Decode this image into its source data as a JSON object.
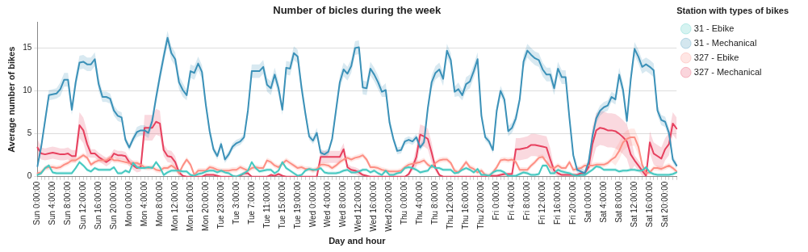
{
  "chart_data": {
    "type": "line",
    "title": "Number of bicles during the week",
    "xlabel": "Day and hour",
    "ylabel": "Average number of bikes",
    "legend_title": "Station with types of bikes",
    "legend": "top right",
    "grid": "y",
    "ylim": [
      0,
      18
    ],
    "yticks": [
      0,
      5,
      10,
      15
    ],
    "categories": [
      "Sun 0:00:00",
      null,
      null,
      null,
      "Sun 4:00:00",
      null,
      null,
      null,
      "Sun 8:00:00",
      null,
      null,
      null,
      "Sun 12:00:00",
      null,
      null,
      null,
      "Sun 16:00:00",
      null,
      null,
      null,
      "Sun 20:00:00",
      null,
      null,
      null,
      "Mon 0:00:00",
      null,
      null,
      null,
      "Mon 4:00:00",
      null,
      null,
      null,
      "Mon 8:00:00",
      null,
      null,
      null,
      "Mon 12:00:00",
      null,
      null,
      null,
      "Mon 16:00:00",
      null,
      null,
      null,
      "Mon 20:00:00",
      null,
      null,
      null,
      "Tue 23:00:00",
      null,
      null,
      null,
      "Tue 3:00:00",
      null,
      null,
      null,
      "Tue 7:00:00",
      null,
      null,
      null,
      "Tue 11:00:00",
      null,
      null,
      null,
      "Tue 15:00:00",
      null,
      null,
      null,
      "Tue 19:00:00",
      null,
      null,
      null,
      "Wed 0:00:00",
      null,
      null,
      null,
      "Wed 4:00:00",
      null,
      null,
      null,
      "Wed 8:00:00",
      null,
      null,
      null,
      "Wed 12:00:00",
      null,
      null,
      null,
      "Wed 16:00:00",
      null,
      null,
      null,
      "Wed 20:00:00",
      null,
      null,
      null,
      "Thu 0:00:00",
      null,
      null,
      null,
      "Thu 4:00:00",
      null,
      null,
      null,
      "Thu 8:00:00",
      null,
      null,
      null,
      "Thu 12:00:00",
      null,
      null,
      null,
      "Thu 16:00:00",
      null,
      null,
      null,
      "Thu 20:00:00",
      null,
      null,
      null,
      "Fri 0:00:00",
      null,
      null,
      null,
      "Fri 4:00:00",
      null,
      null,
      null,
      "Fri 8:00:00",
      null,
      null,
      null,
      "Fri 12:00:00",
      null,
      null,
      null,
      "Fri 16:00:00",
      null,
      null,
      null,
      "Fri 20:00:00",
      null,
      null,
      null,
      "Sat 0:00:00",
      null,
      null,
      null,
      "Sat 4:00:00",
      null,
      null,
      null,
      "Sat 8:00:00",
      null,
      null,
      null,
      "Sat 12:00:00",
      null,
      null,
      null,
      "Sat 16:00:00",
      null,
      null,
      null,
      "Sat 20:00:00",
      null,
      null,
      null
    ],
    "series": [
      {
        "name": "31 - Ebike",
        "color": "#45c9c1",
        "values": [
          0.2,
          0.4,
          1.0,
          1.3,
          0.5,
          0.4,
          0.4,
          0.4,
          0.4,
          0.4,
          1.0,
          1.7,
          1.3,
          0.8,
          0.6,
          1.0,
          0.8,
          0.8,
          0.8,
          0.8,
          1.1,
          0.4,
          0.4,
          0.7,
          0.5,
          1.6,
          1.1,
          1.0,
          1.0,
          1.1,
          1.0,
          1.7,
          1.1,
          0.2,
          0.5,
          0.7,
          0.7,
          0.7,
          0.6,
          0.6,
          0.2,
          0.1,
          0.3,
          0.4,
          0.6,
          0.7,
          0.7,
          0.5,
          0.7,
          0.5,
          0.4,
          0.1,
          0,
          0.2,
          0.4,
          0.7,
          1.7,
          1.0,
          0.6,
          0.7,
          0.8,
          0.8,
          0.4,
          0.7,
          1.7,
          1.0,
          0.7,
          0.4,
          0.1,
          0.2,
          0.7,
          0.9,
          0.8,
          0.8,
          1.0,
          0.5,
          0.4,
          0.4,
          0.4,
          0.5,
          0.7,
          0.8,
          0.5,
          0.5,
          0.6,
          0.8,
          0.8,
          0.5,
          0.7,
          0.4,
          0.2,
          0.7,
          0.2,
          0.2,
          0.4,
          0.5,
          1.0,
          1.1,
          1.0,
          0.8,
          0.5,
          0.6,
          0.7,
          1.3,
          1.0,
          1.0,
          0.8,
          0.8,
          0.8,
          0.4,
          0.5,
          0.8,
          1.0,
          0.8,
          0.5,
          0.9,
          0.2,
          0.2,
          0.1,
          0.5,
          0.7,
          0.7,
          0.5,
          0.1,
          0.1,
          0.1,
          0.3,
          0.5,
          0.4,
          0.2,
          0.2,
          0.3,
          1.3,
          1.3,
          0.4,
          0.4,
          0.8,
          0.6,
          0.5,
          0.4,
          0.2,
          0.1,
          0.2,
          0.2,
          0.5,
          0.8,
          1.2,
          1.1,
          0.8,
          0.8,
          0.8,
          0.8,
          0.6,
          0.7,
          0.7,
          0.8,
          0.8,
          0.7,
          0.7,
          1.1,
          0.5,
          0.3,
          0.2,
          0.2,
          0.2,
          0.2,
          0.3,
          0.5
        ],
        "lower": [
          0,
          0.2,
          0.8,
          1.1,
          0.3,
          0.2,
          0.2,
          0.2,
          0.2,
          0.2,
          0.8,
          1.5,
          1.1,
          0.6,
          0.4,
          0.8,
          0.6,
          0.6,
          0.6,
          0.6,
          0.9,
          0.2,
          0.2,
          0.5,
          0.3,
          1.4,
          0.9,
          0.8,
          0.8,
          0.9,
          0.8,
          1.5,
          0.9,
          0,
          0.3,
          0.5,
          0.5,
          0.5,
          0.4,
          0.4,
          0,
          0,
          0.1,
          0.2,
          0.4,
          0.5,
          0.5,
          0.3,
          0.5,
          0.3,
          0.2,
          0,
          0,
          0,
          0.2,
          0.5,
          1.5,
          0.8,
          0.4,
          0.5,
          0.6,
          0.6,
          0.2,
          0.5,
          1.5,
          0.8,
          0.5,
          0.2,
          0,
          0,
          0.5,
          0.7,
          0.6,
          0.6,
          0.8,
          0.3,
          0.2,
          0.2,
          0.2,
          0.3,
          0.5,
          0.6,
          0.3,
          0.3,
          0.4,
          0.6,
          0.6,
          0.3,
          0.5,
          0.2,
          0,
          0.5,
          0,
          0,
          0.2,
          0.3,
          0.8,
          0.9,
          0.8,
          0.6,
          0.3,
          0.4,
          0.5,
          1.1,
          0.8,
          0.8,
          0.6,
          0.6,
          0.6,
          0.2,
          0.3,
          0.6,
          0.8,
          0.6,
          0.3,
          0.7,
          0,
          0,
          0,
          0.3,
          0.5,
          0.5,
          0.3,
          0,
          0,
          0,
          0.1,
          0.3,
          0.2,
          0,
          0,
          0.1,
          1.1,
          1.1,
          0.2,
          0.2,
          0.6,
          0.4,
          0.3,
          0.2,
          0,
          0,
          0,
          0,
          0.3,
          0.6,
          1.0,
          0.9,
          0.6,
          0.6,
          0.6,
          0.6,
          0.4,
          0.5,
          0.5,
          0.6,
          0.6,
          0.5,
          0.5,
          0.9,
          0.3,
          0.1,
          0,
          0,
          0,
          0,
          0.1,
          0.3
        ],
        "upper": [
          0.4,
          0.6,
          1.2,
          1.5,
          0.7,
          0.6,
          0.6,
          0.6,
          0.6,
          0.6,
          1.2,
          1.9,
          1.5,
          1.0,
          0.8,
          1.2,
          1.0,
          1.0,
          1.0,
          1.0,
          1.3,
          0.6,
          0.6,
          0.9,
          0.7,
          1.8,
          1.3,
          1.2,
          1.2,
          1.3,
          1.2,
          1.9,
          1.3,
          0.4,
          0.7,
          0.9,
          0.9,
          0.9,
          0.8,
          0.8,
          0.4,
          0.3,
          0.5,
          0.6,
          0.8,
          0.9,
          0.9,
          0.7,
          0.9,
          0.7,
          0.6,
          0.3,
          0.2,
          0.4,
          0.6,
          0.9,
          1.9,
          1.2,
          0.8,
          0.9,
          1.0,
          1.0,
          0.6,
          0.9,
          1.9,
          1.2,
          0.9,
          0.6,
          0.3,
          0.4,
          0.9,
          1.1,
          1.0,
          1.0,
          1.2,
          0.7,
          0.6,
          0.6,
          0.6,
          0.7,
          0.9,
          1.0,
          0.7,
          0.7,
          0.8,
          1.0,
          1.0,
          0.7,
          0.9,
          0.6,
          0.4,
          0.9,
          0.4,
          0.4,
          0.6,
          0.7,
          1.2,
          1.3,
          1.2,
          1.0,
          0.7,
          0.8,
          0.9,
          1.5,
          1.2,
          1.2,
          1.0,
          1.0,
          1.0,
          0.6,
          0.7,
          1.0,
          1.2,
          1.0,
          0.7,
          1.1,
          0.4,
          0.4,
          0.3,
          0.7,
          0.9,
          0.9,
          0.7,
          0.3,
          0.3,
          0.3,
          0.5,
          0.7,
          0.6,
          0.4,
          0.4,
          0.5,
          1.5,
          1.5,
          0.6,
          0.6,
          1.0,
          0.8,
          0.7,
          0.6,
          0.4,
          0.3,
          0.4,
          0.4,
          0.7,
          1.0,
          1.4,
          1.3,
          1.0,
          1.0,
          1.0,
          1.0,
          0.8,
          0.9,
          0.9,
          1.0,
          1.0,
          0.9,
          0.9,
          1.3,
          0.7,
          0.5,
          0.4,
          0.4,
          0.4,
          0.4,
          0.5,
          0.7
        ]
      },
      {
        "name": "31 - Mechanical",
        "color": "#3b91b8",
        "values": [
          1.2,
          3.5,
          6.5,
          9.5,
          9.6,
          9.7,
          10.2,
          11.3,
          11.3,
          7.8,
          11.0,
          13.3,
          13.4,
          13.1,
          13.1,
          13.7,
          10.8,
          9.3,
          9.3,
          9.1,
          7.7,
          7.1,
          6.9,
          4.3,
          3.4,
          4.4,
          5.2,
          5.4,
          5.4,
          5.1,
          6.5,
          9.2,
          11.7,
          14.0,
          16.2,
          14.4,
          13.7,
          11.0,
          10.1,
          9.5,
          12.3,
          12.1,
          13.2,
          12.2,
          8.4,
          5.3,
          3.2,
          2.4,
          3.8,
          2.0,
          2.6,
          3.5,
          3.9,
          4.1,
          4.6,
          7.7,
          12.3,
          12.3,
          12.3,
          12.8,
          10.7,
          10.3,
          11.9,
          10.3,
          7.8,
          12.7,
          12.6,
          14.4,
          14.0,
          10.4,
          7.4,
          4.7,
          4.2,
          5.1,
          2.8,
          2.6,
          2.9,
          4.4,
          7.7,
          11.0,
          12.5,
          12.0,
          12.9,
          15.0,
          15.1,
          10.4,
          10.3,
          12.6,
          11.9,
          11.0,
          9.9,
          10.1,
          6.3,
          4.4,
          3.0,
          3.1,
          4.1,
          4.3,
          4.1,
          4.6,
          3.4,
          4.0,
          8.0,
          11.0,
          12.1,
          12.5,
          11.4,
          14.7,
          13.6,
          9.9,
          10.2,
          9.5,
          10.8,
          11.1,
          12.3,
          13.7,
          7.1,
          4.6,
          4.1,
          3.1,
          7.7,
          10.0,
          9.0,
          5.3,
          5.7,
          6.8,
          9.0,
          13.4,
          14.7,
          14.2,
          13.8,
          13.6,
          12.5,
          11.9,
          11.9,
          10.3,
          12.6,
          11.6,
          11.6,
          6.8,
          2.5,
          0.8,
          0.6,
          0.4,
          1.7,
          4.7,
          6.8,
          7.7,
          8.1,
          8.3,
          9.3,
          9.0,
          11.9,
          10.1,
          6.5,
          11.3,
          14.9,
          14.0,
          12.8,
          13.1,
          12.8,
          12.4,
          7.7,
          6.6,
          6.4,
          5.1,
          2.0,
          1.3
        ],
        "lower": [
          0.8,
          3.1,
          5.9,
          8.9,
          9.0,
          9.1,
          9.4,
          10.5,
          10.5,
          7.2,
          10.2,
          12.5,
          12.6,
          12.3,
          12.3,
          12.9,
          10.0,
          8.7,
          8.7,
          8.5,
          7.1,
          6.5,
          6.3,
          3.9,
          3.0,
          4.0,
          4.6,
          4.8,
          4.8,
          4.5,
          5.9,
          8.6,
          10.9,
          13.2,
          15.4,
          13.6,
          12.9,
          10.2,
          9.3,
          8.9,
          11.5,
          11.3,
          12.4,
          11.4,
          7.8,
          4.7,
          2.8,
          2.0,
          3.4,
          1.6,
          2.2,
          3.1,
          3.5,
          3.7,
          4.2,
          7.1,
          11.5,
          11.5,
          11.5,
          12.0,
          9.9,
          9.5,
          11.1,
          9.5,
          7.2,
          11.9,
          11.8,
          13.6,
          13.2,
          9.6,
          6.8,
          4.3,
          3.8,
          4.5,
          2.4,
          2.2,
          2.5,
          4.0,
          7.1,
          10.2,
          11.7,
          11.2,
          12.1,
          14.2,
          14.3,
          9.6,
          9.5,
          11.8,
          11.1,
          10.2,
          9.3,
          9.3,
          5.7,
          4.0,
          2.6,
          2.7,
          3.7,
          3.9,
          3.7,
          4.2,
          3.0,
          3.6,
          7.4,
          10.2,
          11.3,
          11.7,
          10.6,
          13.9,
          12.8,
          9.3,
          9.4,
          8.9,
          10.0,
          10.3,
          11.5,
          12.9,
          6.5,
          4.2,
          3.7,
          2.7,
          7.1,
          9.4,
          8.4,
          4.7,
          5.1,
          6.2,
          8.4,
          12.6,
          13.9,
          13.4,
          13.0,
          12.8,
          11.7,
          11.1,
          11.1,
          9.5,
          11.8,
          10.8,
          10.8,
          6.2,
          2.1,
          0.4,
          0.2,
          0,
          1.3,
          4.3,
          6.2,
          7.1,
          7.5,
          7.7,
          8.7,
          8.4,
          11.1,
          9.3,
          5.9,
          10.5,
          14.1,
          13.2,
          12.0,
          12.3,
          12.0,
          11.6,
          7.1,
          6.0,
          5.8,
          4.5,
          1.6,
          0.9
        ],
        "upper": [
          1.6,
          3.9,
          7.1,
          10.1,
          10.2,
          10.3,
          11.0,
          12.1,
          12.1,
          8.4,
          11.8,
          14.1,
          14.2,
          13.9,
          13.9,
          14.5,
          11.6,
          9.9,
          9.9,
          9.7,
          8.3,
          7.7,
          7.5,
          4.7,
          3.8,
          4.8,
          5.8,
          6.0,
          6.0,
          5.7,
          7.1,
          9.8,
          12.5,
          14.8,
          17.0,
          15.2,
          14.5,
          11.8,
          10.9,
          10.1,
          13.1,
          12.9,
          14.0,
          13.0,
          9.0,
          5.9,
          3.6,
          2.8,
          4.2,
          2.4,
          3.0,
          3.9,
          4.3,
          4.5,
          5.0,
          8.3,
          13.1,
          13.1,
          13.1,
          13.6,
          11.5,
          11.1,
          12.7,
          11.1,
          8.4,
          13.5,
          13.4,
          15.2,
          14.8,
          11.2,
          8.0,
          5.1,
          4.6,
          5.7,
          3.2,
          3.0,
          3.3,
          4.8,
          8.3,
          11.8,
          13.3,
          12.8,
          13.7,
          15.8,
          15.9,
          11.2,
          11.1,
          13.4,
          12.7,
          11.8,
          10.5,
          10.9,
          6.9,
          4.8,
          3.4,
          3.5,
          4.5,
          4.7,
          4.5,
          5.0,
          3.8,
          4.4,
          8.6,
          11.8,
          12.9,
          13.3,
          12.2,
          15.5,
          14.4,
          10.5,
          11.0,
          10.1,
          11.6,
          11.9,
          13.1,
          14.5,
          7.7,
          5.0,
          4.5,
          3.5,
          8.3,
          10.6,
          9.6,
          5.9,
          6.3,
          7.4,
          9.6,
          14.2,
          15.5,
          15.0,
          14.6,
          14.4,
          13.3,
          12.7,
          12.7,
          11.1,
          13.4,
          12.4,
          12.4,
          7.4,
          2.9,
          1.2,
          1.0,
          0.8,
          2.1,
          5.1,
          7.4,
          8.3,
          8.7,
          8.9,
          9.9,
          9.6,
          12.7,
          10.9,
          7.1,
          12.1,
          15.7,
          14.8,
          13.6,
          13.9,
          13.6,
          13.2,
          8.3,
          7.2,
          7.0,
          5.7,
          2.4,
          1.7
        ]
      },
      {
        "name": "327 - Ebike",
        "color": "#fd8f84",
        "values": [
          0.4,
          0.5,
          1.0,
          1.1,
          1.1,
          1.0,
          1.1,
          1.4,
          1.6,
          1.9,
          1.9,
          2.2,
          2.5,
          2.2,
          1.4,
          1.7,
          1.9,
          1.9,
          1.9,
          2.2,
          1.9,
          1.9,
          1.8,
          1.7,
          1.6,
          1.6,
          1.6,
          1.4,
          1.1,
          1.0,
          1.1,
          0.8,
          0.7,
          1.0,
          1.0,
          1.3,
          1.0,
          0.4,
          1.3,
          2.0,
          1.4,
          0.2,
          0.7,
          0.7,
          0.7,
          1.1,
          1.0,
          0.8,
          0.7,
          0.7,
          0.7,
          0.8,
          0.8,
          1.1,
          0.9,
          0.7,
          1.0,
          1.1,
          1.0,
          1.0,
          1.9,
          1.7,
          1.3,
          1.1,
          1.5,
          1.9,
          1.6,
          1.3,
          1.0,
          1.1,
          0.9,
          0.9,
          0.7,
          0.9,
          1.4,
          1.4,
          1.3,
          1.0,
          1.3,
          1.7,
          2.0,
          2.2,
          2.0,
          2.2,
          2.3,
          2.5,
          2.0,
          1.1,
          1.1,
          1.0,
          0.8,
          0.7,
          0.6,
          0.6,
          0.6,
          0.7,
          1.1,
          1.4,
          1.5,
          1.6,
          1.7,
          1.9,
          1.4,
          1.1,
          1.6,
          1.9,
          2.0,
          2.0,
          1.6,
          0.7,
          0.5,
          1.1,
          1.7,
          1.1,
          0.9,
          0.5,
          0.7,
          0.2,
          0.1,
          0.5,
          1.1,
          1.9,
          2.0,
          1.9,
          2.0,
          1.7,
          0.8,
          0.8,
          0.8,
          1.3,
          1.7,
          2.2,
          2.3,
          1.7,
          1.1,
          1.0,
          1.3,
          1.0,
          1.0,
          1.7,
          0.8,
          0.9,
          1.0,
          1.3,
          1.3,
          1.3,
          1.4,
          1.4,
          1.4,
          1.6,
          2.0,
          2.3,
          3.0,
          4.0,
          4.4,
          4.6,
          4.6,
          3.5,
          1.4,
          0.4,
          0.5,
          1.0,
          1.0,
          0.9,
          1.1,
          1.3,
          1.0,
          0.6
        ],
        "lower": [
          0.1,
          0.2,
          0.7,
          0.8,
          0.8,
          0.7,
          0.8,
          1.1,
          1.3,
          1.6,
          1.6,
          1.9,
          2.2,
          1.9,
          1.1,
          1.4,
          1.6,
          1.6,
          1.6,
          1.9,
          1.6,
          1.6,
          1.5,
          1.4,
          1.3,
          1.3,
          1.3,
          1.1,
          0.8,
          0.7,
          0.8,
          0.5,
          0.4,
          0.7,
          0.7,
          1.0,
          0.7,
          0.1,
          1.0,
          1.7,
          1.1,
          0,
          0.4,
          0.4,
          0.4,
          0.8,
          0.7,
          0.5,
          0.4,
          0.4,
          0.4,
          0.5,
          0.5,
          0.8,
          0.6,
          0.4,
          0.7,
          0.8,
          0.7,
          0.7,
          1.6,
          1.4,
          1.0,
          0.8,
          1.2,
          1.6,
          1.3,
          1.0,
          0.7,
          0.8,
          0.6,
          0.6,
          0.4,
          0.6,
          1.1,
          1.1,
          1.0,
          0.7,
          1.0,
          1.4,
          1.7,
          1.9,
          1.7,
          1.9,
          2.0,
          2.2,
          1.7,
          0.8,
          0.8,
          0.7,
          0.5,
          0.4,
          0.3,
          0.3,
          0.3,
          0.4,
          0.8,
          1.1,
          1.2,
          1.3,
          1.4,
          1.6,
          1.1,
          0.8,
          1.3,
          1.6,
          1.7,
          1.7,
          1.3,
          0.4,
          0.2,
          0.8,
          1.4,
          0.8,
          0.6,
          0.2,
          0.4,
          0,
          0,
          0.2,
          0.8,
          1.6,
          1.7,
          1.6,
          1.7,
          1.4,
          0.5,
          0.5,
          0.5,
          1.0,
          1.4,
          1.9,
          2.0,
          1.4,
          0.8,
          0.7,
          1.0,
          0.7,
          0.7,
          1.4,
          0.5,
          0.6,
          0.7,
          1.0,
          1.0,
          1.0,
          1.1,
          1.1,
          1.1,
          1.3,
          1.7,
          1.3,
          2.0,
          3.0,
          3.4,
          3.6,
          3.6,
          2.5,
          1.1,
          0.1,
          0.2,
          0.7,
          0.7,
          0.6,
          0.8,
          1.0,
          0.7,
          0.3
        ],
        "upper": [
          0.7,
          0.8,
          1.3,
          1.4,
          1.4,
          1.3,
          1.4,
          1.7,
          1.9,
          2.2,
          2.2,
          2.5,
          2.8,
          2.5,
          1.7,
          2.0,
          2.2,
          2.2,
          2.2,
          2.5,
          2.2,
          2.2,
          2.1,
          2.0,
          1.9,
          1.9,
          1.9,
          1.7,
          1.4,
          1.3,
          1.4,
          1.1,
          1.0,
          1.3,
          1.3,
          1.6,
          1.3,
          0.7,
          1.6,
          2.3,
          1.7,
          0.5,
          1.0,
          1.0,
          1.0,
          1.4,
          1.3,
          1.1,
          1.0,
          1.0,
          1.0,
          1.1,
          1.1,
          1.4,
          1.2,
          1.0,
          1.3,
          1.4,
          1.3,
          1.3,
          2.2,
          2.0,
          1.6,
          1.4,
          1.8,
          2.2,
          1.9,
          1.6,
          1.3,
          1.4,
          1.2,
          1.2,
          1.0,
          1.2,
          1.7,
          1.7,
          1.6,
          1.3,
          1.6,
          2.0,
          2.3,
          2.5,
          2.3,
          2.5,
          2.6,
          2.8,
          2.3,
          1.4,
          1.4,
          1.3,
          1.1,
          1.0,
          0.9,
          0.9,
          0.9,
          1.0,
          1.4,
          1.7,
          1.8,
          1.9,
          2.0,
          2.2,
          1.7,
          1.4,
          1.9,
          2.2,
          2.3,
          2.3,
          1.9,
          1.0,
          0.8,
          1.4,
          2.0,
          1.4,
          1.2,
          0.8,
          1.0,
          0.5,
          0.4,
          0.8,
          1.4,
          2.2,
          2.3,
          2.2,
          2.3,
          2.0,
          1.1,
          1.1,
          1.1,
          1.6,
          2.0,
          2.5,
          2.6,
          2.0,
          1.4,
          1.3,
          1.6,
          1.3,
          1.3,
          2.0,
          1.1,
          1.2,
          1.3,
          1.6,
          1.6,
          1.6,
          1.7,
          1.7,
          1.7,
          1.9,
          2.3,
          3.3,
          4.0,
          5.0,
          5.4,
          5.6,
          5.6,
          4.5,
          1.7,
          0.7,
          0.8,
          1.3,
          1.3,
          1.2,
          1.4,
          1.6,
          1.3,
          0.9
        ]
      },
      {
        "name": "327 - Mechanical",
        "color": "#e7405e",
        "values": [
          3.4,
          2.7,
          2.6,
          2.7,
          2.8,
          2.7,
          2.6,
          2.6,
          2.7,
          2.4,
          2.4,
          6.0,
          5.4,
          3.8,
          2.7,
          2.7,
          2.3,
          2.0,
          1.7,
          2.0,
          2.7,
          2.5,
          2.5,
          2.4,
          1.7,
          1.3,
          1.0,
          1.1,
          5.7,
          5.7,
          5.7,
          6.4,
          6.2,
          3.1,
          2.4,
          2.3,
          1.7,
          0.5,
          0.1,
          0,
          0,
          0,
          0,
          0,
          0.2,
          0.2,
          0.2,
          0.1,
          0,
          0,
          0,
          0,
          0,
          0.1,
          0.4,
          0.4,
          0,
          0,
          0,
          0,
          0,
          0.2,
          0.1,
          0.3,
          0.1,
          0,
          0,
          0,
          0,
          0,
          0,
          0,
          0,
          0,
          2.3,
          2.3,
          2.3,
          2.3,
          2.3,
          2.3,
          3.2,
          1.1,
          0.8,
          0.7,
          0.5,
          0.2,
          0.1,
          0,
          0,
          0,
          0,
          0,
          0,
          0,
          0,
          0,
          0,
          0.3,
          1.1,
          2.3,
          4.9,
          4.7,
          4.4,
          2.8,
          1.0,
          0.2,
          0,
          0,
          0,
          0,
          0,
          0,
          0,
          0,
          0,
          0,
          0,
          0,
          0.1,
          0.1,
          0.1,
          0.2,
          0.3,
          0.3,
          0.3,
          3.2,
          3.2,
          3.3,
          3.4,
          3.7,
          3.7,
          3.6,
          3.5,
          3.4,
          2.0,
          0.7,
          0.4,
          0.2,
          0.2,
          0.2,
          0.2,
          0.2,
          0.4,
          0.4,
          1.1,
          3.8,
          5.4,
          5.7,
          5.6,
          5.4,
          5.4,
          5.3,
          5.0,
          4.6,
          4.1,
          2.6,
          1.9,
          1.3,
          0.7,
          0.1,
          4.0,
          2.7,
          2.4,
          2.1,
          3.2,
          3.8,
          6.2,
          5.6
        ],
        "lower": [
          2.4,
          2.0,
          1.9,
          2.0,
          2.1,
          2.0,
          1.9,
          1.9,
          2.0,
          1.7,
          1.7,
          4.5,
          3.9,
          2.3,
          2.2,
          2.2,
          1.8,
          1.5,
          1.2,
          1.5,
          2.2,
          2.0,
          2.0,
          1.9,
          1.2,
          0.8,
          0.5,
          0.6,
          4.2,
          4.2,
          4.2,
          4.9,
          4.7,
          2.4,
          1.7,
          1.6,
          1.0,
          0.1,
          0,
          0,
          0,
          0,
          0,
          0,
          0,
          0,
          0,
          0,
          0,
          0,
          0,
          0,
          0,
          0,
          0,
          0,
          0,
          0,
          0,
          0,
          0,
          0,
          0,
          0,
          0,
          0,
          0,
          0,
          0,
          0,
          0,
          0,
          0,
          0,
          1.6,
          1.6,
          1.6,
          1.6,
          1.6,
          1.6,
          2.5,
          0.7,
          0.4,
          0.3,
          0.1,
          0,
          0,
          0,
          0,
          0,
          0,
          0,
          0,
          0,
          0,
          0,
          0,
          0,
          0.7,
          1.1,
          3.7,
          3.5,
          3.2,
          1.6,
          0.6,
          0,
          0,
          0,
          0,
          0,
          0,
          0,
          0,
          0,
          0,
          0,
          0,
          0,
          0,
          0,
          0,
          0,
          0,
          0,
          0,
          1.9,
          1.9,
          2.0,
          2.1,
          2.4,
          2.4,
          2.3,
          2.2,
          2.1,
          0.7,
          0.3,
          0,
          0,
          0,
          0,
          0,
          0,
          0,
          0,
          0.5,
          1.8,
          3.4,
          3.7,
          3.6,
          3.4,
          3.4,
          3.3,
          3.0,
          2.6,
          2.1,
          0.6,
          1.3,
          0.7,
          0.1,
          0,
          2.7,
          1.4,
          1.1,
          0.8,
          1.9,
          2.5,
          4.9,
          4.3
        ],
        "upper": [
          4.4,
          3.4,
          3.3,
          3.4,
          3.5,
          3.4,
          3.3,
          3.3,
          3.4,
          3.1,
          3.1,
          7.5,
          6.9,
          5.3,
          3.2,
          3.2,
          2.8,
          2.5,
          2.2,
          2.5,
          3.2,
          3.0,
          3.0,
          2.9,
          2.2,
          1.8,
          1.5,
          1.6,
          7.2,
          7.2,
          7.2,
          7.9,
          7.7,
          3.8,
          3.1,
          3.0,
          2.4,
          0.9,
          0.3,
          0,
          0,
          0,
          0,
          0,
          0.4,
          0.4,
          0.4,
          0.3,
          0,
          0,
          0,
          0,
          0,
          0.3,
          0.6,
          0.6,
          0,
          0,
          0,
          0,
          0,
          0.4,
          0.3,
          0.5,
          0.3,
          0,
          0,
          0,
          0,
          0,
          0,
          0,
          0,
          0,
          3.0,
          3.0,
          3.0,
          3.0,
          3.0,
          3.0,
          3.9,
          1.5,
          1.2,
          1.1,
          0.9,
          0.4,
          0.3,
          0,
          0,
          0,
          0,
          0,
          0,
          0,
          0,
          0,
          0,
          0.5,
          1.5,
          3.5,
          6.1,
          5.9,
          5.6,
          4.0,
          1.4,
          0.4,
          0,
          0,
          0,
          0,
          0,
          0,
          0,
          0,
          0,
          0,
          0,
          0,
          0.3,
          0.3,
          0.3,
          0.4,
          0.5,
          0.5,
          0.5,
          4.5,
          4.5,
          4.6,
          4.7,
          5.0,
          5.0,
          4.9,
          4.8,
          4.7,
          3.3,
          1.1,
          0.6,
          0.4,
          0.4,
          0.4,
          0.4,
          0.4,
          0.6,
          0.6,
          1.7,
          5.8,
          7.4,
          7.7,
          7.6,
          7.4,
          7.4,
          7.3,
          7.0,
          6.6,
          6.1,
          4.6,
          2.5,
          1.9,
          1.3,
          0.3,
          5.3,
          4.0,
          3.7,
          3.4,
          4.5,
          5.1,
          7.5,
          6.9
        ]
      }
    ]
  }
}
